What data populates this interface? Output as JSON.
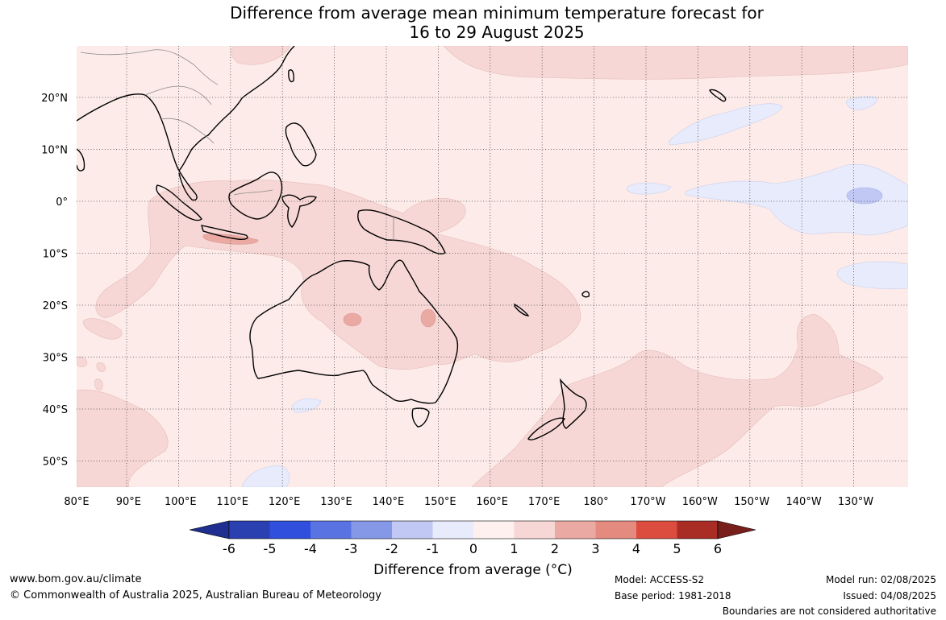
{
  "title": {
    "line1": "Difference from average mean minimum temperature forecast for",
    "line2": "16 to 29 August 2025"
  },
  "axes": {
    "lon_labels": [
      "80°E",
      "90°E",
      "100°E",
      "110°E",
      "120°E",
      "130°E",
      "140°E",
      "150°E",
      "160°E",
      "170°E",
      "180°",
      "170°W",
      "160°W",
      "150°W",
      "140°W",
      "130°W"
    ],
    "lat_labels": [
      "20°N",
      "10°N",
      "0°",
      "10°S",
      "20°S",
      "30°S",
      "40°S",
      "50°S"
    ],
    "lon_range": [
      80,
      241
    ],
    "lat_range": [
      -55,
      30
    ]
  },
  "colorbar": {
    "ticks": [
      "-6",
      "-5",
      "-4",
      "-3",
      "-2",
      "-1",
      "0",
      "1",
      "2",
      "3",
      "4",
      "5",
      "6"
    ],
    "colors": [
      "#1f2f8f",
      "#2a3fb0",
      "#2f4fdc",
      "#5a73e3",
      "#8598e8",
      "#c0c8f3",
      "#e8ebfb",
      "#fdf0ee",
      "#f6d7d5",
      "#eba9a3",
      "#e48a7f",
      "#dc4c3f",
      "#a92c25",
      "#781f1c"
    ],
    "label": "Difference from average (°C)"
  },
  "palette": {
    "background_band": "#fcebe9",
    "warm_1_2": "#f6d7d5",
    "warm_2_3": "#eba9a3",
    "cool_0_1": "#e8ebfb",
    "cool_1_2": "#c0c8f3"
  },
  "footer": {
    "website": "www.bom.gov.au/climate",
    "copyright": "© Commonwealth of Australia 2025, Australian Bureau of Meteorology",
    "model": "Model: ACCESS-S2",
    "base_period": "Base period: 1981-2018",
    "model_run": "Model run: 02/08/2025",
    "issued": "Issued: 04/08/2025",
    "disclaimer": "Boundaries are not considered authoritative"
  }
}
